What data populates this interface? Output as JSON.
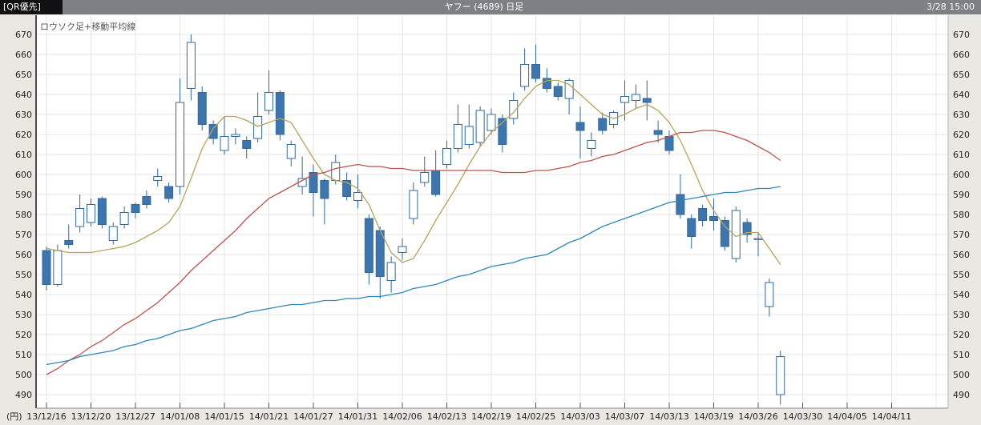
{
  "title_bar": {
    "left": "[QR優先]",
    "title": "ヤフー (4689) 日足",
    "timestamp": "3/28 15:00"
  },
  "chart_data": {
    "type": "candlestick",
    "note": "ロウソク足+移動平均線",
    "unit_label": "(円)",
    "ylim": [
      483,
      680
    ],
    "grid": true,
    "y_ticks": [
      670,
      660,
      650,
      640,
      630,
      620,
      610,
      600,
      590,
      580,
      570,
      560,
      550,
      540,
      530,
      520,
      510,
      500,
      490
    ],
    "x_labels": [
      "13/12/16",
      "13/12/20",
      "13/12/27",
      "14/01/08",
      "14/01/15",
      "14/01/21",
      "14/01/27",
      "14/01/31",
      "14/02/06",
      "14/02/13",
      "14/02/19",
      "14/02/25",
      "14/03/03",
      "14/03/07",
      "14/03/13",
      "14/03/19",
      "14/03/26",
      "14/03/30",
      "14/04/05",
      "14/04/11"
    ],
    "dates": [
      "13/12/16",
      "13/12/17",
      "13/12/18",
      "13/12/19",
      "13/12/20",
      "13/12/24",
      "13/12/25",
      "13/12/26",
      "13/12/27",
      "13/12/30",
      "14/01/06",
      "14/01/07",
      "14/01/08",
      "14/01/09",
      "14/01/10",
      "14/01/14",
      "14/01/15",
      "14/01/16",
      "14/01/17",
      "14/01/20",
      "14/01/21",
      "14/01/22",
      "14/01/23",
      "14/01/24",
      "14/01/27",
      "14/01/28",
      "14/01/29",
      "14/01/30",
      "14/01/31",
      "14/02/03",
      "14/02/04",
      "14/02/05",
      "14/02/06",
      "14/02/07",
      "14/02/10",
      "14/02/12",
      "14/02/13",
      "14/02/14",
      "14/02/17",
      "14/02/18",
      "14/02/19",
      "14/02/20",
      "14/02/21",
      "14/02/24",
      "14/02/25",
      "14/02/26",
      "14/02/27",
      "14/02/28",
      "14/03/03",
      "14/03/04",
      "14/03/05",
      "14/03/06",
      "14/03/07",
      "14/03/10",
      "14/03/11",
      "14/03/12",
      "14/03/13",
      "14/03/14",
      "14/03/17",
      "14/03/18",
      "14/03/19",
      "14/03/20",
      "14/03/24",
      "14/03/25",
      "14/03/26",
      "14/03/27",
      "14/03/28"
    ],
    "ohlc": [
      [
        562,
        564,
        542,
        545
      ],
      [
        545,
        565,
        544,
        562
      ],
      [
        567,
        575,
        563,
        565
      ],
      [
        574,
        590,
        571,
        583
      ],
      [
        576,
        588,
        574,
        585
      ],
      [
        588,
        589,
        573,
        575
      ],
      [
        567,
        576,
        565,
        574
      ],
      [
        575,
        584,
        573,
        581
      ],
      [
        585,
        586,
        578,
        581
      ],
      [
        589,
        592,
        583,
        585
      ],
      [
        597,
        603,
        594,
        599
      ],
      [
        594,
        596,
        586,
        588
      ],
      [
        594,
        648,
        590,
        636
      ],
      [
        643,
        670,
        637,
        666
      ],
      [
        641,
        644,
        622,
        625
      ],
      [
        625,
        627,
        615,
        618
      ],
      [
        612,
        629,
        610,
        619
      ],
      [
        619,
        623,
        615,
        620
      ],
      [
        617,
        619,
        608,
        613
      ],
      [
        618,
        641,
        616,
        629
      ],
      [
        632,
        652,
        630,
        641
      ],
      [
        641,
        642,
        617,
        620
      ],
      [
        608,
        617,
        604,
        615
      ],
      [
        594,
        609,
        590,
        598
      ],
      [
        601,
        605,
        579,
        591
      ],
      [
        597,
        598,
        575,
        588
      ],
      [
        597,
        610,
        595,
        606
      ],
      [
        597,
        601,
        587,
        589
      ],
      [
        587,
        600,
        583,
        591
      ],
      [
        578,
        580,
        545,
        551
      ],
      [
        572,
        574,
        538,
        549
      ],
      [
        547,
        559,
        541,
        556
      ],
      [
        561,
        568,
        557,
        564
      ],
      [
        578,
        596,
        575,
        592
      ],
      [
        596,
        609,
        594,
        601
      ],
      [
        602,
        612,
        589,
        590
      ],
      [
        605,
        617,
        603,
        613
      ],
      [
        613,
        635,
        611,
        625
      ],
      [
        615,
        635,
        613,
        624
      ],
      [
        616,
        634,
        614,
        632
      ],
      [
        622,
        633,
        620,
        630
      ],
      [
        628,
        630,
        611,
        615
      ],
      [
        628,
        641,
        625,
        637
      ],
      [
        644,
        663,
        642,
        655
      ],
      [
        655,
        665,
        646,
        648
      ],
      [
        648,
        653,
        641,
        643
      ],
      [
        644,
        646,
        637,
        639
      ],
      [
        638,
        648,
        630,
        647
      ],
      [
        626,
        634,
        608,
        622
      ],
      [
        613,
        621,
        609,
        617
      ],
      [
        628,
        631,
        620,
        622
      ],
      [
        625,
        632,
        623,
        631
      ],
      [
        636,
        647,
        627,
        639
      ],
      [
        637,
        645,
        633,
        640
      ],
      [
        638,
        647,
        627,
        636
      ],
      [
        622,
        627,
        616,
        620
      ],
      [
        619,
        622,
        610,
        612
      ],
      [
        590,
        600,
        578,
        580
      ],
      [
        578,
        580,
        563,
        569
      ],
      [
        583,
        585,
        574,
        577
      ],
      [
        579,
        588,
        572,
        577
      ],
      [
        577,
        579,
        562,
        564
      ],
      [
        558,
        584,
        556,
        582
      ],
      [
        576,
        578,
        566,
        570
      ],
      [
        568,
        571,
        559,
        568
      ],
      [
        534,
        548,
        529,
        546
      ],
      [
        490,
        512,
        485,
        509
      ]
    ],
    "series": [
      {
        "name": "ma-short",
        "values": [
          563,
          562,
          561,
          561,
          561,
          562,
          563,
          564,
          566,
          569,
          572,
          576,
          584,
          598,
          613,
          623,
          629,
          629,
          627,
          624,
          626,
          628,
          626,
          617,
          608,
          600,
          597,
          596,
          593,
          585,
          572,
          561,
          556,
          558,
          567,
          577,
          586,
          595,
          605,
          614,
          621,
          626,
          631,
          638,
          644,
          647,
          647,
          645,
          640,
          635,
          630,
          628,
          630,
          633,
          635,
          632,
          626,
          617,
          605,
          592,
          582,
          574,
          569,
          571,
          571,
          563,
          555
        ]
      },
      {
        "name": "ma-mid",
        "values": [
          500,
          503,
          507,
          510,
          514,
          517,
          521,
          525,
          528,
          532,
          536,
          541,
          546,
          552,
          557,
          562,
          567,
          572,
          578,
          583,
          588,
          591,
          594,
          597,
          600,
          601,
          603,
          604,
          605,
          604,
          604,
          603,
          603,
          602,
          602,
          602,
          602,
          602,
          602,
          602,
          602,
          601,
          601,
          601,
          602,
          602,
          603,
          604,
          606,
          607,
          609,
          610,
          612,
          614,
          616,
          617,
          619,
          621,
          621,
          622,
          622,
          621,
          619,
          617,
          614,
          611,
          607
        ]
      },
      {
        "name": "ma-long",
        "values": [
          505,
          506,
          507,
          509,
          510,
          511,
          512,
          514,
          515,
          517,
          518,
          520,
          522,
          523,
          525,
          527,
          528,
          529,
          531,
          532,
          533,
          534,
          535,
          535,
          536,
          537,
          537,
          538,
          538,
          539,
          539,
          540,
          541,
          543,
          544,
          545,
          547,
          549,
          550,
          552,
          554,
          555,
          556,
          558,
          559,
          560,
          563,
          566,
          568,
          571,
          574,
          576,
          578,
          580,
          582,
          584,
          586,
          587,
          588,
          589,
          590,
          591,
          591,
          592,
          593,
          593,
          594
        ]
      }
    ],
    "colors": {
      "up_fill": "#ffffff",
      "down_fill": "#3d76ae",
      "candle_stroke": "#33689c",
      "ma_short": "#b5a45c",
      "ma_mid": "#bd534e",
      "ma_long": "#2f87b5",
      "grid": "#e4e4e4",
      "plot_bg": "#ffffff",
      "axis_bg": "#eae8e2",
      "axis_text": "#222222",
      "spine": "#4a4a4a",
      "note_text": "#555555"
    }
  }
}
